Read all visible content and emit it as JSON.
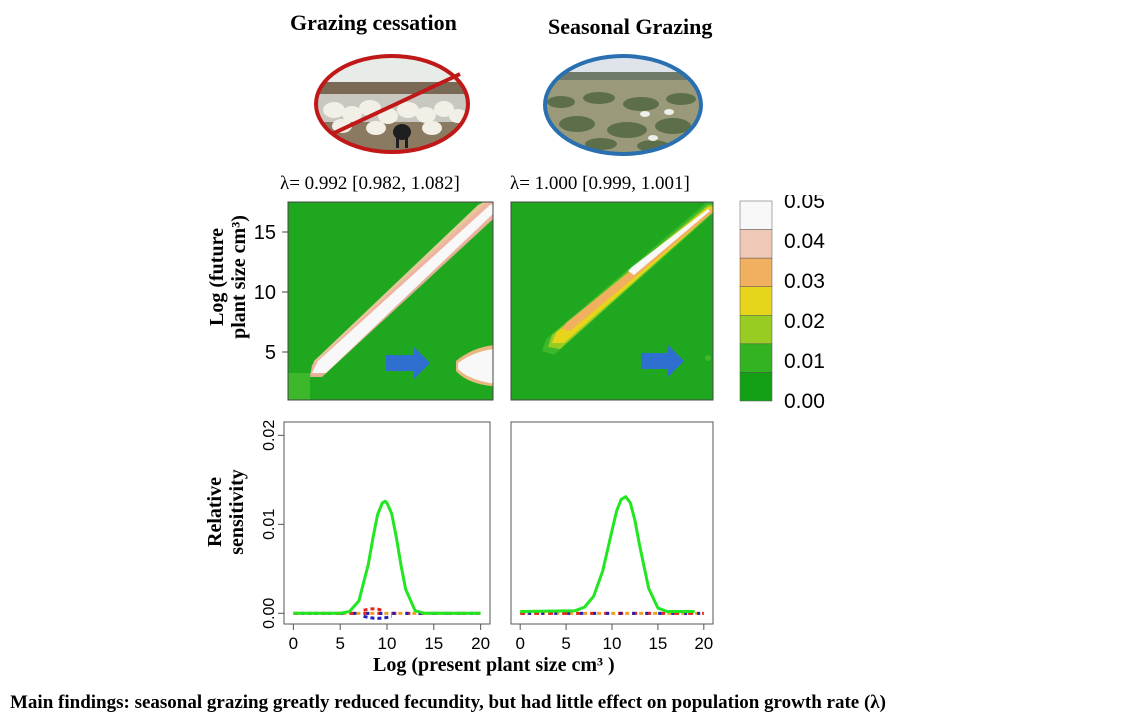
{
  "panels": {
    "left_title": "Grazing cessation",
    "right_title": "Seasonal Grazing",
    "left_lambda": "λ= 0.992 [0.982, 1.082]",
    "right_lambda": "λ= 1.000 [0.999, 1.001]"
  },
  "heatmap_ylabel_line1": "Log (future",
  "heatmap_ylabel_line2": "plant size cm³)",
  "sens_ylabel_line1": "Relative",
  "sens_ylabel_line2": "sensitivity",
  "xlabel": "Log (present plant size cm³ )",
  "finding": "Main findings: seasonal grazing greatly reduced fecundity, but had little effect on population growth rate (λ)",
  "colors": {
    "green_bg": "#1fa81f",
    "arrow": "#2e6fcf",
    "sens_curve": "#22e622",
    "red_dash": "#e0281e",
    "blue_dash": "#2020c0",
    "orange_dash": "#f0a020",
    "cessation_ring": "#c01818",
    "seasonal_ring": "#2a6fb0"
  },
  "chart_data": [
    {
      "type": "heatmap",
      "panel": "Grazing cessation",
      "ylabel": "Log (future plant size cm³)",
      "yticks": [
        5,
        10,
        15
      ],
      "ylim": [
        1,
        17.5
      ],
      "xlim": [
        0,
        20
      ],
      "colorbar": {
        "ticks": [
          "0.00",
          "0.01",
          "0.02",
          "0.03",
          "0.04",
          "0.05"
        ],
        "colors": [
          "#14a014",
          "#33b322",
          "#99cc22",
          "#e6d51a",
          "#f0b060",
          "#f0c8b8",
          "#f8f8f8"
        ]
      }
    },
    {
      "type": "heatmap",
      "panel": "Seasonal Grazing",
      "ylim": [
        1,
        17.5
      ],
      "xlim": [
        0,
        20
      ]
    },
    {
      "type": "line",
      "panel": "Grazing cessation",
      "xlabel": "Log (present plant size cm³ )",
      "ylabel": "Relative sensitivity",
      "xticks": [
        0,
        5,
        10,
        15,
        20
      ],
      "yticks": [
        "0.00",
        "0.01",
        "0.02"
      ],
      "xlim": [
        -1,
        21
      ],
      "ylim": [
        -0.0012,
        0.0215
      ],
      "series": [
        {
          "x": [
            0,
            5,
            6,
            7,
            8,
            8.5,
            9,
            9.5,
            9.8,
            10,
            10.5,
            11,
            11.5,
            12,
            13,
            14,
            20
          ],
          "values": [
            0,
            0,
            0.0002,
            0.0014,
            0.0055,
            0.0085,
            0.0111,
            0.0124,
            0.0126,
            0.0124,
            0.0112,
            0.0085,
            0.0054,
            0.0027,
            0.0003,
            0,
            0
          ]
        }
      ]
    },
    {
      "type": "line",
      "panel": "Seasonal Grazing",
      "xticks": [
        0,
        5,
        10,
        15,
        20
      ],
      "xlim": [
        -1,
        21
      ],
      "ylim": [
        -0.0012,
        0.0215
      ],
      "series": [
        {
          "x": [
            0,
            6,
            7,
            8,
            9,
            10,
            10.5,
            11,
            11.5,
            12,
            12.5,
            13,
            14,
            15,
            16,
            19
          ],
          "values": [
            0.0002,
            0.0003,
            0.0007,
            0.0019,
            0.0048,
            0.0093,
            0.0115,
            0.0128,
            0.0131,
            0.0124,
            0.0104,
            0.0077,
            0.0028,
            0.0006,
            0.0002,
            0.0002
          ]
        }
      ]
    }
  ]
}
